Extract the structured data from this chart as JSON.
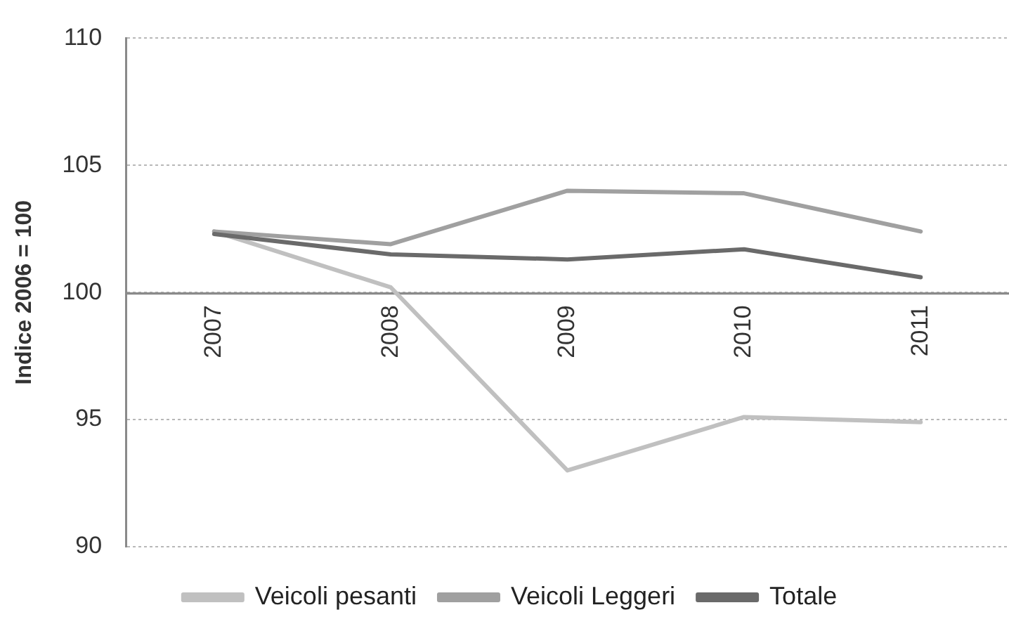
{
  "chart_data": {
    "type": "line",
    "ylabel": "Indice 2006 = 100",
    "categories": [
      "2007",
      "2008",
      "2009",
      "2010",
      "2011"
    ],
    "series": [
      {
        "name": "Veicoli pesanti",
        "color": "#c0c0c0",
        "values": [
          102.4,
          100.2,
          93.0,
          95.1,
          94.9
        ]
      },
      {
        "name": "Veicoli Leggeri",
        "color": "#a0a0a0",
        "values": [
          102.4,
          101.9,
          104.0,
          103.9,
          102.4
        ]
      },
      {
        "name": "Totale",
        "color": "#6a6a6a",
        "values": [
          102.3,
          101.5,
          101.3,
          101.7,
          100.6
        ]
      }
    ],
    "ylim": [
      90,
      110
    ],
    "yticks": [
      90,
      95,
      100,
      105,
      110
    ],
    "grid": "y",
    "legend": "bottom",
    "marker": "none",
    "line_style": "solid"
  }
}
